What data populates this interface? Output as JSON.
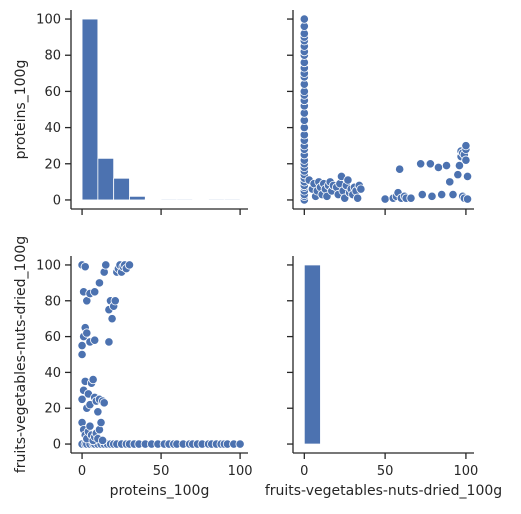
{
  "chart_data": {
    "type": "pairplot",
    "variables": [
      "proteins_100g",
      "fruits-vegetables-nuts-dried_100g"
    ],
    "color": "#4c72b0",
    "panels": [
      {
        "id": "hist-proteins",
        "row": 0,
        "col": 0,
        "type": "histogram",
        "variable": "proteins_100g",
        "xlim": [
          -7,
          105
        ],
        "ylim": [
          -5,
          105
        ],
        "xticks": [
          0,
          50,
          100
        ],
        "xtick_labels_visible": false,
        "yticks": [
          0,
          20,
          40,
          60,
          80,
          100
        ],
        "ytick_labels_visible": true,
        "ylabel": "proteins_100g",
        "xlabel": "",
        "bins": [
          {
            "x0": 0,
            "x1": 10,
            "height": 100
          },
          {
            "x0": 10,
            "x1": 20,
            "height": 23
          },
          {
            "x0": 20,
            "x1": 30,
            "height": 12
          },
          {
            "x0": 30,
            "x1": 40,
            "height": 2
          },
          {
            "x0": 40,
            "x1": 50,
            "height": 0.3
          },
          {
            "x0": 50,
            "x1": 60,
            "height": 0.5
          },
          {
            "x0": 60,
            "x1": 70,
            "height": 0.5
          },
          {
            "x0": 70,
            "x1": 80,
            "height": 0.2
          },
          {
            "x0": 80,
            "x1": 90,
            "height": 0.5
          },
          {
            "x0": 90,
            "x1": 100,
            "height": 0.5
          }
        ]
      },
      {
        "id": "scatter-fruits-vs-proteins",
        "row": 0,
        "col": 1,
        "type": "scatter",
        "x_variable": "fruits-vegetables-nuts-dried_100g",
        "y_variable": "proteins_100g",
        "xlim": [
          -7,
          105
        ],
        "ylim": [
          -5,
          105
        ],
        "xticks": [
          0,
          50,
          100
        ],
        "xtick_labels_visible": false,
        "yticks": [
          0,
          20,
          40,
          60,
          80,
          100
        ],
        "ytick_labels_visible": false,
        "xlabel": "",
        "ylabel": "",
        "points": [
          [
            0,
            0
          ],
          [
            0,
            2
          ],
          [
            0,
            3
          ],
          [
            0,
            5
          ],
          [
            0,
            7
          ],
          [
            0,
            8
          ],
          [
            0,
            10
          ],
          [
            0,
            12
          ],
          [
            0,
            14
          ],
          [
            0,
            16
          ],
          [
            0,
            18
          ],
          [
            0,
            20
          ],
          [
            0,
            22
          ],
          [
            0,
            25
          ],
          [
            0,
            28
          ],
          [
            0,
            30
          ],
          [
            0,
            33
          ],
          [
            0,
            36
          ],
          [
            0,
            40
          ],
          [
            0,
            44
          ],
          [
            0,
            48
          ],
          [
            0,
            52
          ],
          [
            0,
            55
          ],
          [
            0,
            58
          ],
          [
            0,
            60
          ],
          [
            0,
            64
          ],
          [
            0,
            68
          ],
          [
            0,
            70
          ],
          [
            0,
            73
          ],
          [
            0,
            76
          ],
          [
            0,
            80
          ],
          [
            0,
            82
          ],
          [
            0,
            85
          ],
          [
            0,
            88
          ],
          [
            0,
            90
          ],
          [
            0,
            92
          ],
          [
            0,
            96
          ],
          [
            0,
            100
          ],
          [
            3,
            11
          ],
          [
            5,
            6
          ],
          [
            6,
            9
          ],
          [
            7,
            2
          ],
          [
            8,
            5
          ],
          [
            9,
            10
          ],
          [
            10,
            7
          ],
          [
            11,
            3
          ],
          [
            12,
            9
          ],
          [
            13,
            6
          ],
          [
            14,
            2
          ],
          [
            15,
            8
          ],
          [
            16,
            10
          ],
          [
            17,
            5
          ],
          [
            18,
            8
          ],
          [
            20,
            7
          ],
          [
            21,
            3
          ],
          [
            22,
            9
          ],
          [
            23,
            13
          ],
          [
            24,
            5
          ],
          [
            25,
            1
          ],
          [
            26,
            8
          ],
          [
            27,
            11
          ],
          [
            28,
            4
          ],
          [
            29,
            6
          ],
          [
            30,
            3
          ],
          [
            31,
            7
          ],
          [
            32,
            5
          ],
          [
            33,
            1
          ],
          [
            34,
            8
          ],
          [
            35,
            6
          ],
          [
            50,
            0.5
          ],
          [
            55,
            1
          ],
          [
            57,
            2
          ],
          [
            58,
            4
          ],
          [
            59,
            17
          ],
          [
            60,
            1
          ],
          [
            62,
            2
          ],
          [
            63,
            1
          ],
          [
            66,
            1
          ],
          [
            72,
            20
          ],
          [
            73,
            3
          ],
          [
            78,
            20
          ],
          [
            79,
            2
          ],
          [
            83,
            18
          ],
          [
            85,
            3
          ],
          [
            88,
            19
          ],
          [
            90,
            10
          ],
          [
            92,
            3
          ],
          [
            95,
            14
          ],
          [
            96,
            19
          ],
          [
            97,
            24
          ],
          [
            97,
            27
          ],
          [
            98,
            26
          ],
          [
            98,
            2
          ],
          [
            99,
            1
          ],
          [
            99,
            25
          ],
          [
            100,
            22
          ],
          [
            100,
            28
          ],
          [
            100,
            30
          ],
          [
            101,
            13
          ],
          [
            101,
            0.5
          ]
        ]
      },
      {
        "id": "scatter-proteins-vs-fruits",
        "row": 1,
        "col": 0,
        "type": "scatter",
        "x_variable": "proteins_100g",
        "y_variable": "fruits-vegetables-nuts-dried_100g",
        "xlim": [
          -7,
          105
        ],
        "ylim": [
          -5,
          105
        ],
        "xticks": [
          0,
          50,
          100
        ],
        "xtick_labels_visible": true,
        "yticks": [
          0,
          20,
          40,
          60,
          80,
          100
        ],
        "ytick_labels_visible": true,
        "xlabel": "proteins_100g",
        "ylabel": "fruits-vegetables-nuts-dried_100g",
        "points": [
          [
            0,
            0
          ],
          [
            2,
            0
          ],
          [
            3,
            0
          ],
          [
            5,
            0
          ],
          [
            7,
            0
          ],
          [
            8,
            0
          ],
          [
            10,
            0
          ],
          [
            12,
            0
          ],
          [
            14,
            0
          ],
          [
            16,
            0
          ],
          [
            18,
            0
          ],
          [
            20,
            0
          ],
          [
            22,
            0
          ],
          [
            25,
            0
          ],
          [
            28,
            0
          ],
          [
            30,
            0
          ],
          [
            33,
            0
          ],
          [
            36,
            0
          ],
          [
            40,
            0
          ],
          [
            44,
            0
          ],
          [
            48,
            0
          ],
          [
            52,
            0
          ],
          [
            55,
            0
          ],
          [
            58,
            0
          ],
          [
            60,
            0
          ],
          [
            64,
            0
          ],
          [
            68,
            0
          ],
          [
            70,
            0
          ],
          [
            73,
            0
          ],
          [
            76,
            0
          ],
          [
            80,
            0
          ],
          [
            82,
            0
          ],
          [
            85,
            0
          ],
          [
            88,
            0
          ],
          [
            90,
            0
          ],
          [
            92,
            0
          ],
          [
            96,
            0
          ],
          [
            100,
            0
          ],
          [
            0,
            12
          ],
          [
            1,
            8
          ],
          [
            2,
            5
          ],
          [
            3,
            3
          ],
          [
            4,
            7
          ],
          [
            5,
            10
          ],
          [
            6,
            5
          ],
          [
            7,
            2
          ],
          [
            8,
            4
          ],
          [
            9,
            6
          ],
          [
            10,
            3
          ],
          [
            11,
            8
          ],
          [
            12,
            12
          ],
          [
            13,
            2
          ],
          [
            0,
            25
          ],
          [
            1,
            30
          ],
          [
            2,
            35
          ],
          [
            3,
            20
          ],
          [
            4,
            28
          ],
          [
            5,
            22
          ],
          [
            6,
            34
          ],
          [
            7,
            36
          ],
          [
            8,
            26
          ],
          [
            9,
            24
          ],
          [
            10,
            18
          ],
          [
            11,
            25
          ],
          [
            13,
            24
          ],
          [
            14,
            23
          ],
          [
            0,
            50
          ],
          [
            0,
            55
          ],
          [
            1,
            60
          ],
          [
            2,
            65
          ],
          [
            3,
            62
          ],
          [
            5,
            57
          ],
          [
            8,
            58
          ],
          [
            17,
            57
          ],
          [
            0,
            100
          ],
          [
            2,
            99
          ],
          [
            1,
            85
          ],
          [
            3,
            80
          ],
          [
            5,
            84
          ],
          [
            8,
            85
          ],
          [
            11,
            90
          ],
          [
            14,
            96
          ],
          [
            15,
            100
          ],
          [
            17,
            75
          ],
          [
            18,
            80
          ],
          [
            19,
            70
          ],
          [
            20,
            77
          ],
          [
            21,
            80
          ],
          [
            22,
            96
          ],
          [
            23,
            98
          ],
          [
            24,
            100
          ],
          [
            25,
            96
          ],
          [
            26,
            99
          ],
          [
            27,
            100
          ],
          [
            28,
            98
          ],
          [
            30,
            100
          ]
        ]
      },
      {
        "id": "hist-fruits",
        "row": 1,
        "col": 1,
        "type": "histogram",
        "variable": "fruits-vegetables-nuts-dried_100g",
        "xlim": [
          -7,
          105
        ],
        "ylim": [
          -5,
          105
        ],
        "xticks": [
          0,
          50,
          100
        ],
        "xtick_labels_visible": true,
        "yticks": [
          0,
          20,
          40,
          60,
          80,
          100
        ],
        "ytick_labels_visible": false,
        "xlabel": "fruits-vegetables-nuts-dried_100g",
        "ylabel": "",
        "bins": [
          {
            "x0": 0,
            "x1": 10,
            "height": 100
          }
        ]
      }
    ]
  }
}
